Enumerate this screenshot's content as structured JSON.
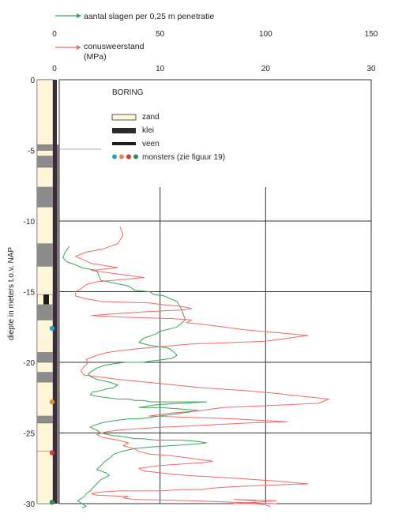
{
  "chart_data": {
    "type": "line",
    "ylabel": "diepte in meters t.o.v. NAP",
    "y_ticks": [
      "0",
      "-5",
      "-10",
      "-15",
      "-20",
      "-25",
      "-30"
    ],
    "ylim": [
      -30,
      0
    ],
    "legend_top": [
      {
        "name": "aantal slagen per 0,25 m penetratie",
        "color": "#3aa35a",
        "ticks": [
          "0",
          "50",
          "100",
          "150"
        ],
        "xlim": [
          0,
          150
        ]
      },
      {
        "name": "conusweerstand",
        "unit": "(MPa)",
        "color": "#ec6a6a",
        "ticks": [
          "0",
          "10",
          "20",
          "30"
        ],
        "xlim": [
          0,
          30
        ]
      }
    ],
    "grid": true,
    "legend_box": {
      "title": "BORING",
      "items": [
        {
          "label": "zand",
          "symbol": "sand"
        },
        {
          "label": "klei",
          "symbol": "clay"
        },
        {
          "label": "veen",
          "symbol": "peat"
        },
        {
          "label": "monsters (zie figuur 19)",
          "symbol": "dots",
          "colors": [
            "#2aa0c8",
            "#e08a3c",
            "#d43838",
            "#2e8b57"
          ]
        }
      ]
    },
    "series": [
      {
        "name": "aantal slagen per 0,25 m penetratie",
        "color": "#3aa35a",
        "x": [
          7,
          5,
          4,
          6,
          10,
          13,
          20,
          22,
          35,
          38,
          45,
          47,
          52,
          55,
          58,
          60,
          62,
          58,
          50,
          48,
          42,
          40,
          45,
          50,
          54,
          56,
          58,
          56,
          52,
          46,
          42,
          38,
          34,
          28,
          24,
          22,
          20,
          18,
          16,
          17,
          20,
          26,
          30,
          28,
          24,
          22,
          18,
          17,
          20,
          25,
          30,
          35,
          38,
          42,
          46,
          50,
          54,
          60,
          72,
          60,
          48,
          44,
          40,
          50,
          60,
          68,
          65,
          60,
          55,
          50,
          45,
          40,
          35,
          30,
          25,
          22,
          20,
          18,
          17,
          20,
          22,
          25,
          28,
          30,
          34,
          38,
          42,
          48,
          52,
          58,
          60,
          68,
          72,
          66,
          55,
          45,
          38,
          32,
          28,
          26,
          24,
          22,
          20,
          24,
          26,
          22,
          20,
          18,
          17,
          15,
          14,
          12,
          11,
          12,
          13,
          14,
          15,
          13
        ],
        "y": [
          -11.8,
          -12.2,
          -12.6,
          -12.9,
          -13.1,
          -13.3,
          -13.5,
          -14.2,
          -14.6,
          -14.9,
          -15.0,
          -15.2,
          -15.3,
          -15.5,
          -15.7,
          -16.2,
          -17.0,
          -17.5,
          -17.8,
          -18.0,
          -18.3,
          -18.6,
          -18.8,
          -18.9,
          -19.0,
          -19.2,
          -19.5,
          -19.7,
          -19.8,
          -19.9,
          -20.0,
          -20.0,
          -20.0,
          -20.1,
          -20.2,
          -20.3,
          -20.4,
          -20.6,
          -20.8,
          -21.0,
          -21.2,
          -21.4,
          -21.6,
          -21.8,
          -21.9,
          -22.0,
          -22.1,
          -22.3,
          -22.4,
          -22.5,
          -22.6,
          -22.6,
          -22.7,
          -22.7,
          -22.8,
          -22.8,
          -22.8,
          -22.8,
          -22.8,
          -22.9,
          -23.0,
          -23.1,
          -23.2,
          -23.2,
          -23.3,
          -23.4,
          -23.5,
          -23.6,
          -23.7,
          -23.8,
          -23.9,
          -24.0,
          -24.0,
          -24.1,
          -24.2,
          -24.3,
          -24.4,
          -24.5,
          -24.6,
          -24.8,
          -25.0,
          -25.1,
          -25.2,
          -25.2,
          -25.3,
          -25.4,
          -25.4,
          -25.5,
          -25.5,
          -25.5,
          -25.5,
          -25.6,
          -25.7,
          -25.8,
          -25.9,
          -26.0,
          -26.1,
          -26.3,
          -26.5,
          -26.8,
          -27.0,
          -27.3,
          -27.6,
          -27.8,
          -28.0,
          -28.3,
          -28.6,
          -28.9,
          -29.1,
          -29.3,
          -29.5,
          -29.7,
          -29.8,
          -29.9,
          -30.0,
          -30.1,
          -30.2,
          -30.3
        ]
      },
      {
        "name": "conusweerstand",
        "color": "#ec6a6a",
        "x": [
          6.2,
          6.5,
          6.0,
          4.5,
          3.0,
          2.0,
          3.5,
          6.0,
          3.5,
          6.5,
          8.5,
          4.0,
          3.0,
          2.5,
          2.0,
          2.0,
          3.0,
          4.5,
          9.0,
          10.0,
          11.5,
          12.5,
          13.0,
          12.0,
          9.0,
          7.0,
          5.0,
          3.5,
          6.5,
          11.0,
          13.0,
          12.5,
          14.0,
          16.0,
          18.0,
          24.0,
          22.0,
          20.0,
          17.0,
          13.0,
          10.0,
          7.0,
          5.0,
          4.0,
          3.0,
          3.2,
          2.8,
          2.5,
          2.8,
          6.0,
          10.0,
          14.0,
          18.0,
          21.0,
          26.0,
          25.0,
          22.0,
          19.0,
          16.0,
          14.0,
          11.0,
          9.0,
          17.0,
          22.0,
          18.0,
          13.0,
          10.0,
          6.0,
          5.0,
          4.0,
          4.5,
          6.0,
          7.0,
          6.5,
          7.5,
          8.0,
          9.0,
          11.0,
          13.0,
          15.0,
          14.0,
          12.0,
          10.0,
          9.0,
          8.0,
          8.5,
          11.0,
          12.5,
          17.0,
          21.0,
          24.0,
          20.0,
          17.0,
          15.0,
          14.0,
          12.0,
          10.0,
          8.0,
          6.0,
          4.0,
          3.5,
          4.0,
          7.0,
          6.5,
          7.5,
          13.0,
          17.0,
          21.0,
          20.0,
          17.0,
          21.0,
          17.0,
          19.0,
          19.0,
          20.0,
          20.5
        ],
        "y": [
          -10.4,
          -11.0,
          -11.6,
          -12.0,
          -12.2,
          -12.5,
          -13.0,
          -13.3,
          -13.5,
          -13.8,
          -14.0,
          -14.3,
          -14.5,
          -14.8,
          -15.0,
          -15.3,
          -15.5,
          -15.7,
          -15.8,
          -15.9,
          -16.0,
          -16.1,
          -16.2,
          -16.3,
          -16.4,
          -16.5,
          -16.6,
          -16.7,
          -16.8,
          -16.9,
          -17.0,
          -17.2,
          -17.3,
          -17.5,
          -17.7,
          -18.1,
          -18.3,
          -18.5,
          -18.6,
          -18.7,
          -18.9,
          -19.1,
          -19.3,
          -19.5,
          -19.8,
          -20.0,
          -20.3,
          -20.6,
          -20.9,
          -21.2,
          -21.5,
          -21.8,
          -22.0,
          -22.2,
          -22.6,
          -22.9,
          -23.0,
          -23.1,
          -23.2,
          -23.4,
          -23.6,
          -23.8,
          -24.0,
          -24.2,
          -24.3,
          -24.5,
          -24.6,
          -24.8,
          -24.9,
          -25.1,
          -25.3,
          -25.5,
          -25.7,
          -25.9,
          -26.1,
          -26.3,
          -26.5,
          -26.6,
          -26.8,
          -27.0,
          -27.1,
          -27.2,
          -27.3,
          -27.4,
          -27.5,
          -27.7,
          -27.9,
          -28.0,
          -28.2,
          -28.4,
          -28.6,
          -28.7,
          -28.8,
          -28.9,
          -29.0,
          -29.0,
          -29.1,
          -29.1,
          -29.1,
          -29.2,
          -29.3,
          -29.4,
          -29.5,
          -29.6,
          -29.7,
          -29.8,
          -29.9,
          -30.0,
          -30.0,
          -30.0,
          -29.8,
          -29.7,
          -29.8,
          -30.0,
          -30.1,
          -30.2
        ]
      }
    ],
    "boring_column": {
      "layers": [
        {
          "top": 0,
          "bottom": -4.6,
          "type": "sand"
        },
        {
          "top": -4.6,
          "bottom": -5.0,
          "type": "clay"
        },
        {
          "top": -5.0,
          "bottom": -5.4,
          "type": "sand"
        },
        {
          "top": -5.4,
          "bottom": -6.2,
          "type": "clay"
        },
        {
          "top": -6.2,
          "bottom": -7.6,
          "type": "sand"
        },
        {
          "top": -7.6,
          "bottom": -9.0,
          "type": "clay"
        },
        {
          "top": -9.0,
          "bottom": -11.6,
          "type": "sand"
        },
        {
          "top": -11.6,
          "bottom": -13.2,
          "type": "clay"
        },
        {
          "top": -13.2,
          "bottom": -15.2,
          "type": "sand"
        },
        {
          "top": -15.2,
          "bottom": -15.9,
          "type": "peat"
        },
        {
          "top": -15.9,
          "bottom": -17.0,
          "type": "clay"
        },
        {
          "top": -17.0,
          "bottom": -19.3,
          "type": "sand"
        },
        {
          "top": -19.3,
          "bottom": -20.0,
          "type": "clay"
        },
        {
          "top": -20.0,
          "bottom": -20.7,
          "type": "sand"
        },
        {
          "top": -20.7,
          "bottom": -21.4,
          "type": "clay"
        },
        {
          "top": -21.4,
          "bottom": -23.8,
          "type": "sand"
        },
        {
          "top": -23.8,
          "bottom": -24.3,
          "type": "clay"
        },
        {
          "top": -24.3,
          "bottom": -26.3,
          "type": "sand"
        },
        {
          "top": -26.3,
          "bottom": -30.0,
          "type": "sand"
        }
      ],
      "samples": [
        {
          "depth": -17.6,
          "color": "#2aa0c8"
        },
        {
          "depth": -22.8,
          "color": "#e08a3c"
        },
        {
          "depth": -26.4,
          "color": "#d43838"
        },
        {
          "depth": -29.9,
          "color": "#2e8b57"
        }
      ]
    }
  }
}
